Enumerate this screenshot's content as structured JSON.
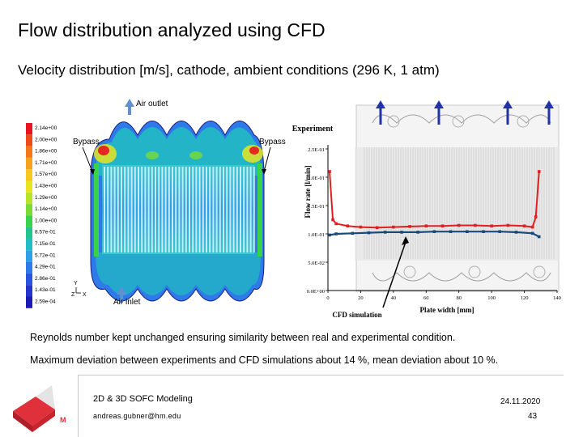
{
  "slide": {
    "title": "Flow distribution analyzed using CFD",
    "subtitle": "Velocity distribution [m/s], cathode, ambient conditions (296 K, 1 atm)",
    "note1": "Reynolds number kept unchanged ensuring similarity between real and experimental condition.",
    "note2": "Maximum deviation between experiments and CFD simulations about 14 %, mean deviation about 10 %."
  },
  "cfd": {
    "air_outlet": "Air outlet",
    "air_inlet": "Air inlet",
    "bypass_left": "Bypass",
    "bypass_right": "Bypass",
    "axis_y": "Y",
    "axis_z": "Z",
    "axis_x": "X",
    "legend": [
      "2.14e+00",
      "2.00e+00",
      "1.86e+00",
      "1.71e+00",
      "1.57e+00",
      "1.43e+00",
      "1.29e+00",
      "1.14e+00",
      "1.00e+00",
      "8.57e-01",
      "7.15e-01",
      "5.72e-01",
      "4.29e-01",
      "2.86e-01",
      "1.43e-01",
      "2.59e-04"
    ],
    "legend_colors": [
      "#e8141e",
      "#ee4a1a",
      "#f4781a",
      "#f7a21c",
      "#f6c81e",
      "#e8e420",
      "#b8e428",
      "#78dc34",
      "#38d24c",
      "#20c48e",
      "#20bcc8",
      "#2ea0e8",
      "#2e7ae8",
      "#2a54e0",
      "#2434cc",
      "#1c1cb4"
    ]
  },
  "chart_data": {
    "type": "line",
    "title": "Experiment",
    "xlabel": "Plate width [mm]",
    "ylabel": "Flow rate [l/min]",
    "xlim": [
      0,
      140
    ],
    "ylim": [
      0,
      0.25
    ],
    "x_ticks": [
      "0",
      "20",
      "40",
      "60",
      "80",
      "100",
      "120",
      "140"
    ],
    "y_ticks": [
      "0.0E+00",
      "5.0E-02",
      "1.0E-01",
      "1.5E-01",
      "2.0E-01",
      "2.5E-01"
    ],
    "series": [
      {
        "name": "Experiment",
        "color": "#e02020",
        "x": [
          1,
          3,
          5,
          12,
          20,
          30,
          40,
          50,
          60,
          70,
          80,
          90,
          100,
          110,
          120,
          125,
          127,
          129
        ],
        "y": [
          0.21,
          0.125,
          0.118,
          0.114,
          0.112,
          0.111,
          0.112,
          0.113,
          0.114,
          0.114,
          0.115,
          0.115,
          0.114,
          0.115,
          0.114,
          0.112,
          0.13,
          0.21
        ]
      },
      {
        "name": "CFD simulation",
        "color": "#1a4a7a",
        "x": [
          1,
          5,
          15,
          25,
          35,
          45,
          55,
          65,
          75,
          85,
          95,
          105,
          115,
          125,
          129
        ],
        "y": [
          0.098,
          0.1,
          0.101,
          0.102,
          0.103,
          0.103,
          0.103,
          0.104,
          0.104,
          0.104,
          0.104,
          0.104,
          0.103,
          0.101,
          0.095
        ]
      }
    ],
    "annotations": {
      "cfd_label": "CFD simulation"
    }
  },
  "footer": {
    "course": "2D & 3D SOFC Modeling",
    "email": "andreas.gubner@hm.edu",
    "date": "24.11.2020",
    "page": "43"
  }
}
